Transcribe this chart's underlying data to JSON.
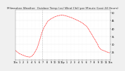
{
  "title": "Milwaukee Weather  Outdoor Temp (vs) Wind Chill per Minute (Last 24 Hours)",
  "line_color": "#ff0000",
  "bg_color": "#f0f0f0",
  "plot_bg": "#ffffff",
  "grid_color": "#cccccc",
  "vline_x": 0.28,
  "vline_color": "#888888",
  "yticks": [
    25,
    30,
    35,
    40,
    45,
    50
  ],
  "ylim": [
    20,
    52
  ],
  "xlim": [
    0,
    1
  ],
  "title_fontsize": 3.0,
  "tick_fontsize": 2.5,
  "x_values": [
    0.0,
    0.01,
    0.02,
    0.03,
    0.04,
    0.05,
    0.06,
    0.07,
    0.08,
    0.09,
    0.1,
    0.11,
    0.12,
    0.13,
    0.14,
    0.15,
    0.16,
    0.17,
    0.18,
    0.19,
    0.2,
    0.21,
    0.22,
    0.23,
    0.24,
    0.25,
    0.26,
    0.27,
    0.28,
    0.29,
    0.3,
    0.31,
    0.32,
    0.33,
    0.34,
    0.35,
    0.36,
    0.37,
    0.38,
    0.39,
    0.4,
    0.41,
    0.42,
    0.43,
    0.44,
    0.45,
    0.46,
    0.47,
    0.48,
    0.49,
    0.5,
    0.51,
    0.52,
    0.53,
    0.54,
    0.55,
    0.56,
    0.57,
    0.58,
    0.59,
    0.6,
    0.61,
    0.62,
    0.63,
    0.64,
    0.65,
    0.66,
    0.67,
    0.68,
    0.69,
    0.7,
    0.71,
    0.72,
    0.73,
    0.74,
    0.75,
    0.76,
    0.77,
    0.78,
    0.79,
    0.8,
    0.81,
    0.82,
    0.83,
    0.84,
    0.85,
    0.86,
    0.87,
    0.88,
    0.89,
    0.9,
    0.91,
    0.92,
    0.93,
    0.94,
    0.95,
    0.96,
    0.97,
    0.98,
    0.99,
    1.0
  ],
  "y_values": [
    26.0,
    25.5,
    25.0,
    24.5,
    24.0,
    23.8,
    23.5,
    23.2,
    23.0,
    22.8,
    22.5,
    22.3,
    22.1,
    22.0,
    21.9,
    21.8,
    22.0,
    22.3,
    22.8,
    23.5,
    24.5,
    25.5,
    26.5,
    27.8,
    29.5,
    31.5,
    33.5,
    35.5,
    37.5,
    39.0,
    40.5,
    41.5,
    42.5,
    43.5,
    44.5,
    45.0,
    45.5,
    46.0,
    46.3,
    46.7,
    47.0,
    47.3,
    47.6,
    47.8,
    48.0,
    48.2,
    48.3,
    48.4,
    48.5,
    48.5,
    48.5,
    48.4,
    48.3,
    48.2,
    48.0,
    47.8,
    47.6,
    47.4,
    47.2,
    47.0,
    46.8,
    46.5,
    46.2,
    46.0,
    45.7,
    45.4,
    45.1,
    44.8,
    44.5,
    44.2,
    43.8,
    43.4,
    43.0,
    42.5,
    42.0,
    41.5,
    40.8,
    40.0,
    39.0,
    38.0,
    37.0,
    36.0,
    35.0,
    34.0,
    33.0,
    32.0,
    31.0,
    30.0,
    28.5,
    27.5,
    27.0,
    26.5,
    26.2,
    26.0,
    25.8,
    25.5,
    25.3,
    25.0,
    24.8,
    24.6,
    24.5
  ],
  "xtick_labels": [
    "12a",
    "1",
    "2",
    "3",
    "4",
    "5",
    "6",
    "7",
    "8",
    "9",
    "10",
    "11",
    "12p",
    "1",
    "2",
    "3",
    "4",
    "5",
    "6",
    "7",
    "8",
    "9",
    "10",
    "11",
    "12a"
  ],
  "xtick_positions": [
    0.0,
    0.0417,
    0.0833,
    0.125,
    0.1667,
    0.2083,
    0.25,
    0.2917,
    0.3333,
    0.375,
    0.4167,
    0.4583,
    0.5,
    0.5417,
    0.5833,
    0.625,
    0.6667,
    0.7083,
    0.75,
    0.7917,
    0.8333,
    0.875,
    0.9167,
    0.9583,
    1.0
  ]
}
